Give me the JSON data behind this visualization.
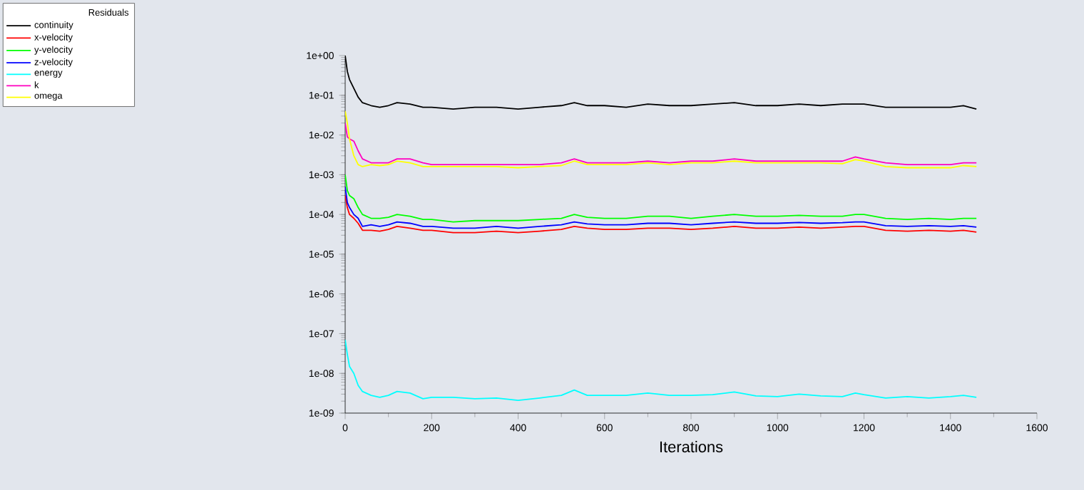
{
  "chart_data": {
    "type": "line",
    "xlabel": "Iterations",
    "legend_title": "Residuals",
    "legend": "top left",
    "log": "y",
    "grid": false,
    "marker": "none",
    "line_style": "solid",
    "x": [
      0,
      5,
      10,
      20,
      30,
      40,
      60,
      80,
      100,
      120,
      150,
      180,
      200,
      250,
      300,
      350,
      400,
      450,
      500,
      530,
      560,
      600,
      650,
      700,
      750,
      800,
      850,
      900,
      950,
      1000,
      1050,
      1100,
      1150,
      1180,
      1200,
      1250,
      1300,
      1350,
      1400,
      1430,
      1460
    ],
    "xlim": [
      0,
      1600
    ],
    "xticks": [
      0,
      200,
      400,
      600,
      800,
      1000,
      1200,
      1400,
      1600
    ],
    "ylim": [
      1e-09,
      1
    ],
    "yticks": [
      {
        "value": 1e-09,
        "label": "1e-09"
      },
      {
        "value": 1e-08,
        "label": "1e-08"
      },
      {
        "value": 1e-07,
        "label": "1e-07"
      },
      {
        "value": 1e-06,
        "label": "1e-06"
      },
      {
        "value": 1e-05,
        "label": "1e-05"
      },
      {
        "value": 0.0001,
        "label": "1e-04"
      },
      {
        "value": 0.001,
        "label": "1e-03"
      },
      {
        "value": 0.01,
        "label": "1e-02"
      },
      {
        "value": 0.1,
        "label": "1e-01"
      },
      {
        "value": 1,
        "label": "1e+00"
      }
    ],
    "series": [
      {
        "name": "continuity",
        "color": "#000000",
        "values": [
          1,
          0.4,
          0.25,
          0.15,
          0.09,
          0.065,
          0.055,
          0.05,
          0.055,
          0.065,
          0.06,
          0.05,
          0.05,
          0.045,
          0.05,
          0.05,
          0.045,
          0.05,
          0.055,
          0.065,
          0.055,
          0.055,
          0.05,
          0.06,
          0.055,
          0.055,
          0.06,
          0.065,
          0.055,
          0.055,
          0.06,
          0.055,
          0.06,
          0.06,
          0.06,
          0.05,
          0.05,
          0.05,
          0.05,
          0.055,
          0.045
        ]
      },
      {
        "name": "x-velocity",
        "color": "#ff0000",
        "values": [
          0.0003,
          0.00015,
          0.0001,
          8e-05,
          6e-05,
          4e-05,
          4e-05,
          3.8e-05,
          4.2e-05,
          5e-05,
          4.5e-05,
          4e-05,
          4e-05,
          3.5e-05,
          3.5e-05,
          3.8e-05,
          3.5e-05,
          3.8e-05,
          4.2e-05,
          5e-05,
          4.5e-05,
          4.2e-05,
          4.2e-05,
          4.5e-05,
          4.5e-05,
          4.2e-05,
          4.5e-05,
          5e-05,
          4.5e-05,
          4.5e-05,
          4.8e-05,
          4.5e-05,
          4.8e-05,
          5e-05,
          5e-05,
          4e-05,
          3.8e-05,
          4e-05,
          3.8e-05,
          4e-05,
          3.6e-05
        ]
      },
      {
        "name": "y-velocity",
        "color": "#00ff00",
        "values": [
          0.001,
          0.0004,
          0.0003,
          0.00025,
          0.00015,
          0.0001,
          8e-05,
          8e-05,
          8.5e-05,
          0.0001,
          9e-05,
          7.5e-05,
          7.5e-05,
          6.5e-05,
          7e-05,
          7e-05,
          7e-05,
          7.5e-05,
          8e-05,
          0.0001,
          8.5e-05,
          8e-05,
          8e-05,
          9e-05,
          9e-05,
          8e-05,
          9e-05,
          0.0001,
          9e-05,
          9e-05,
          9.5e-05,
          9e-05,
          9e-05,
          0.0001,
          0.0001,
          8e-05,
          7.5e-05,
          8e-05,
          7.5e-05,
          8e-05,
          8e-05
        ]
      },
      {
        "name": "z-velocity",
        "color": "#0000ff",
        "values": [
          0.0005,
          0.0002,
          0.00015,
          0.0001,
          8e-05,
          5e-05,
          5.5e-05,
          5e-05,
          5.5e-05,
          6.5e-05,
          6e-05,
          5e-05,
          5e-05,
          4.5e-05,
          4.5e-05,
          5e-05,
          4.5e-05,
          5e-05,
          5.5e-05,
          6.5e-05,
          5.8e-05,
          5.5e-05,
          5.5e-05,
          6e-05,
          6e-05,
          5.5e-05,
          6e-05,
          6.5e-05,
          6e-05,
          6e-05,
          6.3e-05,
          6e-05,
          6.2e-05,
          6.5e-05,
          6.5e-05,
          5.2e-05,
          5e-05,
          5.2e-05,
          5e-05,
          5.2e-05,
          4.8e-05
        ]
      },
      {
        "name": "energy",
        "color": "#00ffff",
        "values": [
          7e-08,
          3e-08,
          1.5e-08,
          1e-08,
          5e-09,
          3.5e-09,
          2.8e-09,
          2.5e-09,
          2.8e-09,
          3.5e-09,
          3.2e-09,
          2.3e-09,
          2.5e-09,
          2.5e-09,
          2.3e-09,
          2.4e-09,
          2.1e-09,
          2.4e-09,
          2.8e-09,
          3.8e-09,
          2.8e-09,
          2.8e-09,
          2.8e-09,
          3.2e-09,
          2.8e-09,
          2.8e-09,
          2.9e-09,
          3.4e-09,
          2.7e-09,
          2.6e-09,
          3e-09,
          2.7e-09,
          2.6e-09,
          3.2e-09,
          2.9e-09,
          2.4e-09,
          2.6e-09,
          2.4e-09,
          2.6e-09,
          2.8e-09,
          2.5e-09
        ]
      },
      {
        "name": "k",
        "color": "#ff00bf",
        "values": [
          0.02,
          0.009,
          0.008,
          0.007,
          0.004,
          0.0025,
          0.002,
          0.002,
          0.002,
          0.0025,
          0.0025,
          0.002,
          0.0018,
          0.0018,
          0.0018,
          0.0018,
          0.0018,
          0.0018,
          0.002,
          0.0025,
          0.002,
          0.002,
          0.002,
          0.0022,
          0.002,
          0.0022,
          0.0022,
          0.0025,
          0.0022,
          0.0022,
          0.0022,
          0.0022,
          0.0022,
          0.0028,
          0.0025,
          0.002,
          0.0018,
          0.0018,
          0.0018,
          0.002,
          0.002
        ]
      },
      {
        "name": "omega",
        "color": "#ffff00",
        "values": [
          0.04,
          0.02,
          0.008,
          0.003,
          0.0018,
          0.0016,
          0.0018,
          0.0017,
          0.0018,
          0.0022,
          0.002,
          0.0016,
          0.0016,
          0.0016,
          0.0016,
          0.0016,
          0.0015,
          0.0016,
          0.0017,
          0.0022,
          0.0018,
          0.0018,
          0.0018,
          0.002,
          0.0018,
          0.002,
          0.002,
          0.0022,
          0.002,
          0.002,
          0.002,
          0.002,
          0.0019,
          0.0024,
          0.0022,
          0.0016,
          0.0015,
          0.0015,
          0.0015,
          0.0017,
          0.0016
        ]
      }
    ]
  }
}
